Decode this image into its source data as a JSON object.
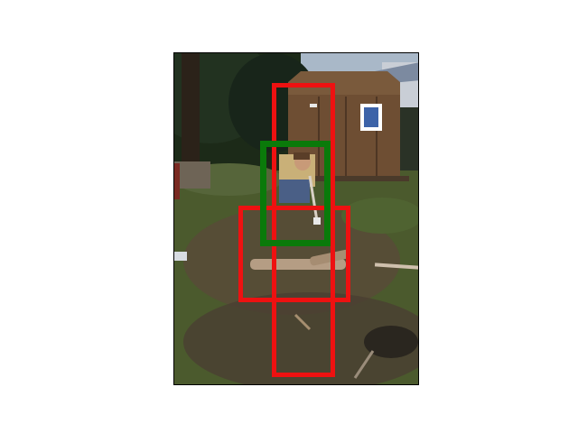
{
  "figure": {
    "title": ""
  },
  "colors": {
    "page_background": "#ffffff",
    "box_primary": "#0a7a0a",
    "box_secondary": "#ee1111",
    "sky": "#a9b8c8",
    "trees": "#1c2a18",
    "shed_wall": "#6e4e33",
    "shed_roof": "#7a5a3c",
    "shed_window": "#3d63a8",
    "ground_grass": "#4b5a2d",
    "ground_dirt": "#5a4a3a",
    "log": "#b59d84",
    "person_shirt": "#c9b078",
    "person_jeans": "#4a5f86",
    "person_skin": "#c89a78"
  },
  "photo_subject": {
    "icons": [
      "person-with-axe",
      "wooden-shed",
      "log",
      "trees",
      "brush-pile"
    ]
  },
  "detections": [
    {
      "name": "detection-box-person",
      "label_visible": false,
      "color_key": "box_primary"
    },
    {
      "name": "detection-box-tall",
      "label_visible": false,
      "color_key": "box_secondary"
    },
    {
      "name": "detection-box-wide",
      "label_visible": false,
      "color_key": "box_secondary"
    }
  ]
}
